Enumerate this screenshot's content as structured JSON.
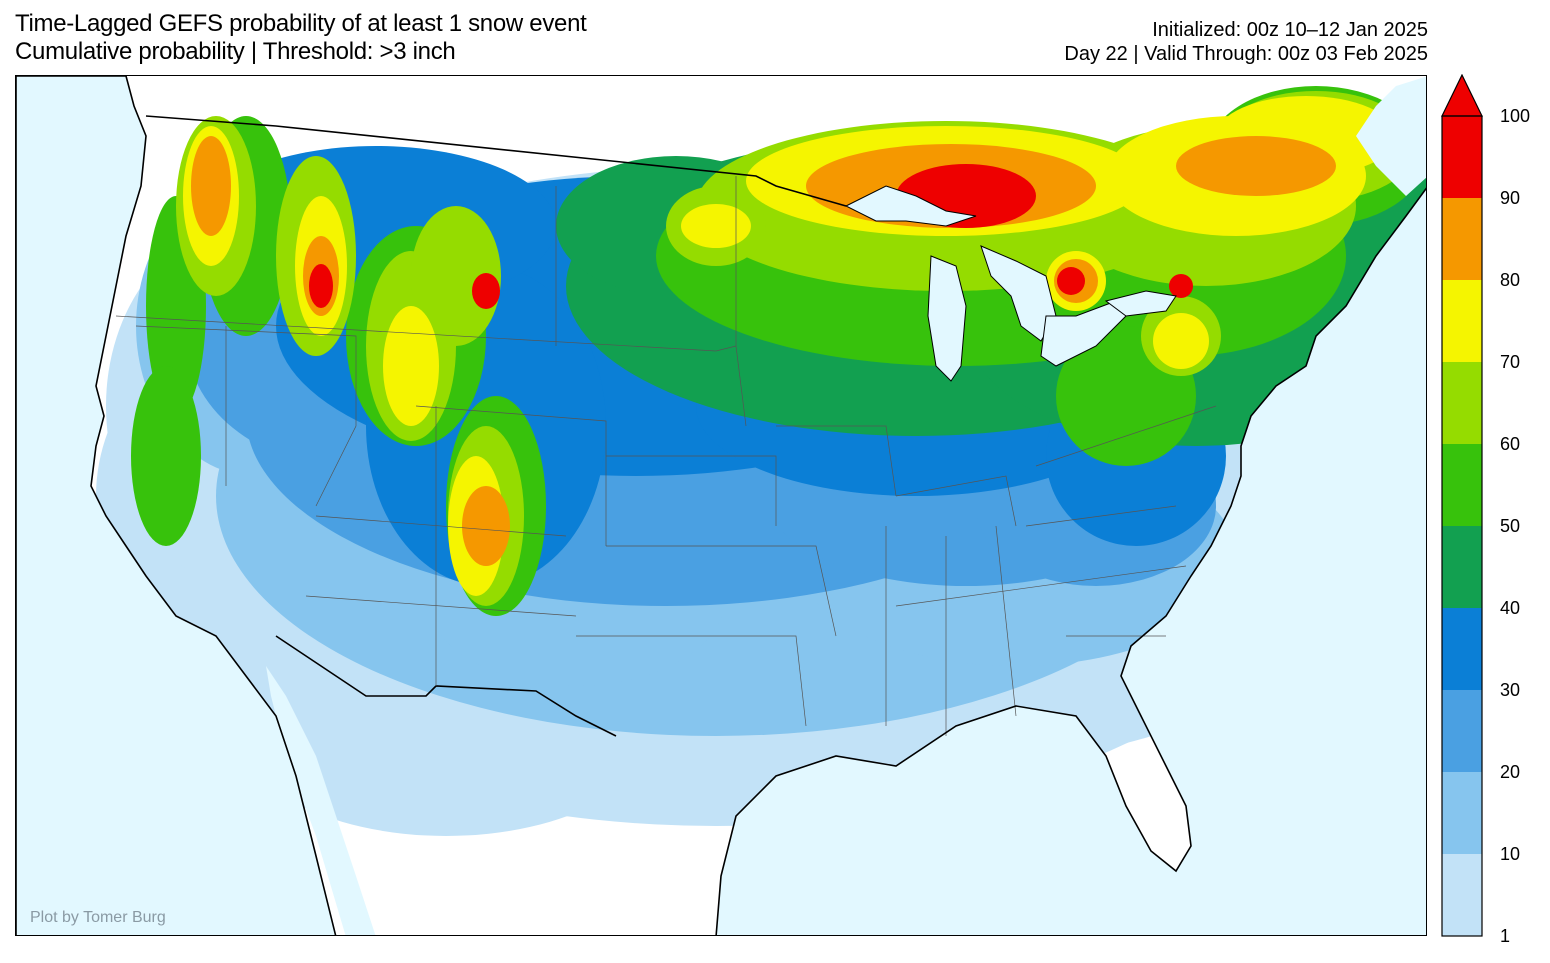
{
  "header": {
    "title_line1": "Time-Lagged GEFS probability of at least 1 snow event",
    "title_line2": "Cumulative probability | Threshold: >3 inch",
    "initialized": "Initialized: 00z 10–12 Jan 2025",
    "valid": "Day 22 | Valid Through: 00z 03 Feb 2025"
  },
  "credit": "Plot by Tomer Burg",
  "colors": {
    "ocean": "#e2f8ff",
    "land": "#ffffff"
  },
  "colorbar": {
    "levels": [
      "1",
      "10",
      "20",
      "30",
      "40",
      "50",
      "60",
      "70",
      "80",
      "90",
      "100"
    ],
    "colors": [
      "#c2e2f7",
      "#86c5ee",
      "#4aa0e2",
      "#0b7fd6",
      "#12a050",
      "#37c20c",
      "#95dc00",
      "#f5f500",
      "#f59800",
      "#ee0000"
    ],
    "extend": "max"
  }
}
